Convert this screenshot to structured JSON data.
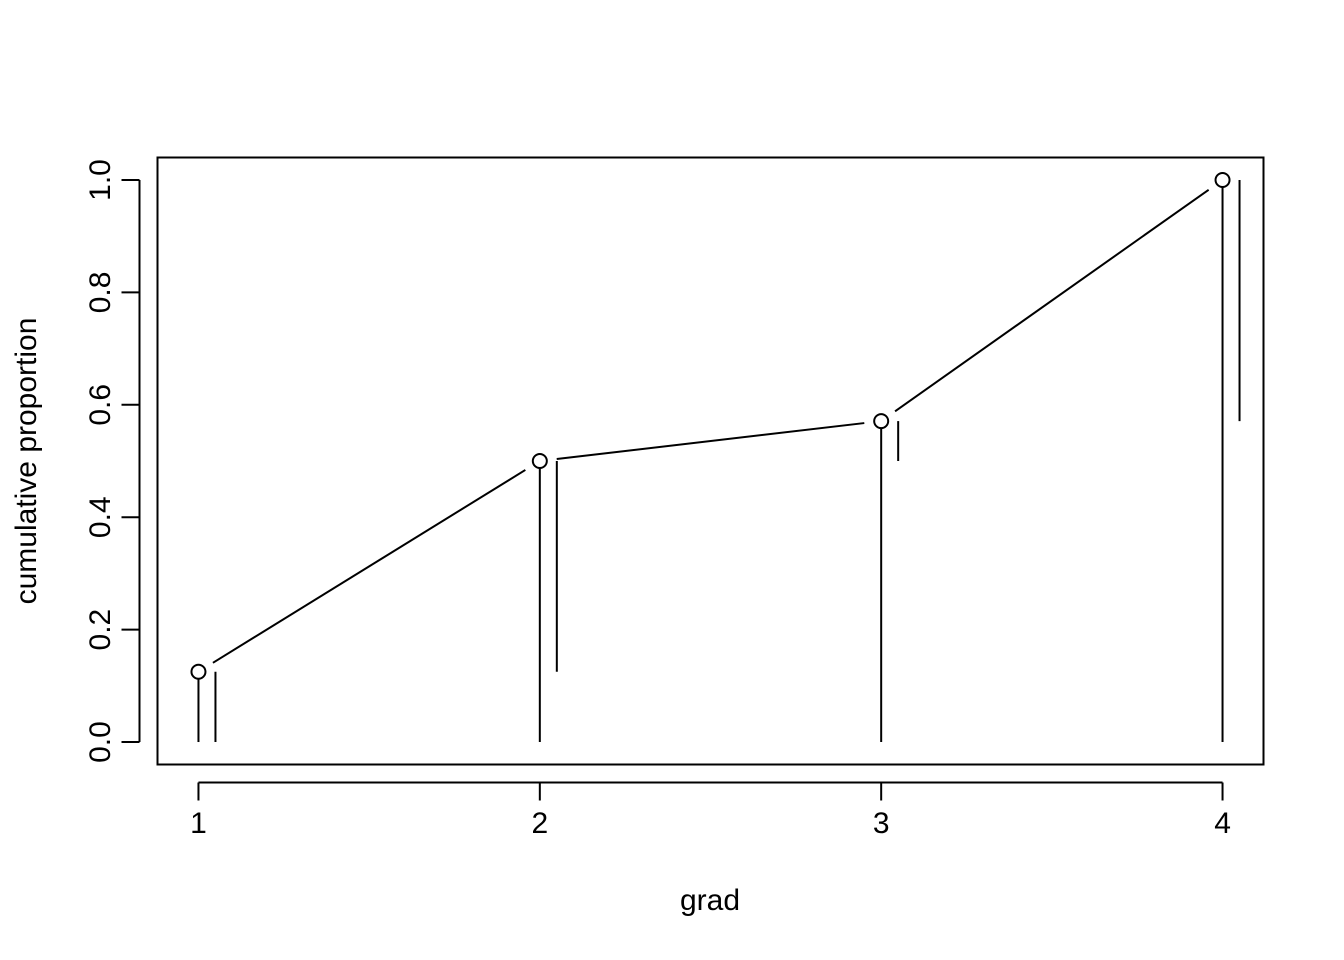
{
  "chart_data": {
    "type": "line",
    "title": "",
    "xlabel": "grad",
    "ylabel": "cumulative proportion",
    "x": [
      1,
      2,
      3,
      4
    ],
    "x_ticks": [
      "1",
      "2",
      "3",
      "4"
    ],
    "y_ticks": [
      "0.0",
      "0.2",
      "0.4",
      "0.6",
      "0.8",
      "1.0"
    ],
    "xlim": [
      0.88,
      4.12
    ],
    "ylim": [
      -0.04,
      1.04
    ],
    "series": [
      {
        "values": [
          0.125,
          0.5,
          0.571,
          1.0
        ],
        "marker": "open-circle"
      }
    ],
    "vertical_segments": {
      "from_zero_at_x": [
        0.125,
        0.5,
        0.571,
        1.0
      ],
      "increment_offset_bars": [
        {
          "x": 1,
          "from": 0.0,
          "to": 0.125
        },
        {
          "x": 2,
          "from": 0.125,
          "to": 0.5
        },
        {
          "x": 3,
          "from": 0.5,
          "to": 0.571
        },
        {
          "x": 4,
          "from": 0.571,
          "to": 1.0
        }
      ]
    },
    "grid": false,
    "legend": "none",
    "colors": {
      "line": "#000000",
      "background": "#ffffff"
    }
  }
}
